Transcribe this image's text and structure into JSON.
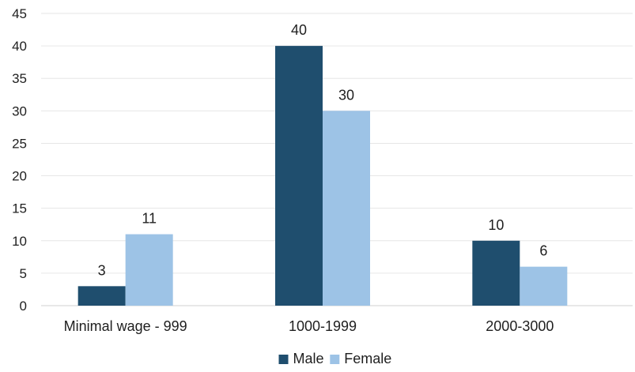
{
  "chart_data": {
    "type": "bar",
    "title": "",
    "xlabel": "",
    "ylabel": "",
    "categories": [
      "Minimal wage - 999",
      "1000-1999",
      "2000-3000"
    ],
    "series": [
      {
        "name": "Male",
        "values": [
          3,
          40,
          10
        ],
        "color": "#1f4e6e"
      },
      {
        "name": "Female",
        "values": [
          11,
          30,
          6
        ],
        "color": "#9dc3e6"
      }
    ],
    "ylim": [
      0,
      45
    ],
    "yticks": [
      "0",
      "5",
      "10",
      "15",
      "20",
      "25",
      "30",
      "35",
      "40",
      "45"
    ],
    "grid": true,
    "legend": "bottom-center",
    "data_labels": true
  }
}
